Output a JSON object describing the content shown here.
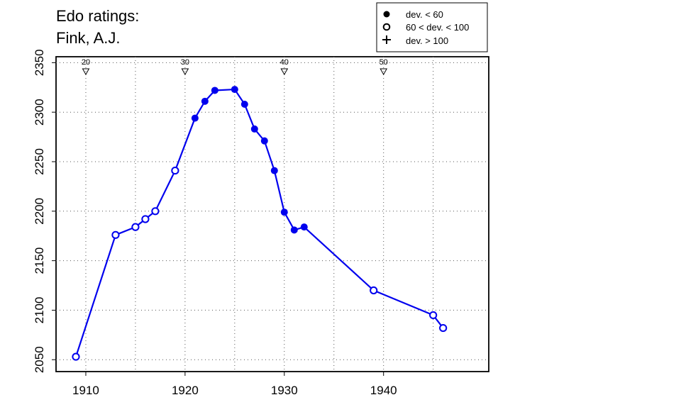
{
  "chart_data": {
    "type": "line",
    "title": "Edo ratings:",
    "subtitle": "Fink, A.J.",
    "xlim": [
      1907,
      1950.6
    ],
    "ylim": [
      2038,
      2356
    ],
    "grid": true,
    "line_color": "#0000ee",
    "x_ticks": [
      1910,
      1920,
      1930,
      1940
    ],
    "x_tick_labels": [
      "1910",
      "1920",
      "1930",
      "1940"
    ],
    "x_grid_extra": [
      1915,
      1925,
      1935,
      1945
    ],
    "y_ticks": [
      2050,
      2100,
      2150,
      2200,
      2250,
      2300,
      2350
    ],
    "y_tick_labels": [
      "2050",
      "2100",
      "2150",
      "2200",
      "2250",
      "2300",
      "2350"
    ],
    "age_markers": [
      {
        "x": 1910,
        "label": "20"
      },
      {
        "x": 1920,
        "label": "30"
      },
      {
        "x": 1930,
        "label": "40"
      },
      {
        "x": 1940,
        "label": "50"
      }
    ],
    "legend": {
      "placement": "top-right",
      "entries": [
        {
          "symbol": "filled-circle",
          "label": "dev. < 60"
        },
        {
          "symbol": "open-circle",
          "label": "60 < dev. < 100"
        },
        {
          "symbol": "plus",
          "label": "dev. > 100"
        }
      ]
    },
    "points": [
      {
        "x": 1909,
        "y": 2053,
        "dev": "open"
      },
      {
        "x": 1913,
        "y": 2176,
        "dev": "open"
      },
      {
        "x": 1915,
        "y": 2184,
        "dev": "open"
      },
      {
        "x": 1916,
        "y": 2192,
        "dev": "open"
      },
      {
        "x": 1917,
        "y": 2200,
        "dev": "open"
      },
      {
        "x": 1919,
        "y": 2241,
        "dev": "open"
      },
      {
        "x": 1921,
        "y": 2294,
        "dev": "filled"
      },
      {
        "x": 1922,
        "y": 2311,
        "dev": "filled"
      },
      {
        "x": 1923,
        "y": 2322,
        "dev": "filled"
      },
      {
        "x": 1925,
        "y": 2323,
        "dev": "filled"
      },
      {
        "x": 1926,
        "y": 2308,
        "dev": "filled"
      },
      {
        "x": 1927,
        "y": 2283,
        "dev": "filled"
      },
      {
        "x": 1928,
        "y": 2271,
        "dev": "filled"
      },
      {
        "x": 1929,
        "y": 2241,
        "dev": "filled"
      },
      {
        "x": 1930,
        "y": 2199,
        "dev": "filled"
      },
      {
        "x": 1931,
        "y": 2181,
        "dev": "filled"
      },
      {
        "x": 1932,
        "y": 2184,
        "dev": "filled"
      },
      {
        "x": 1939,
        "y": 2120,
        "dev": "open"
      },
      {
        "x": 1945,
        "y": 2095,
        "dev": "open"
      },
      {
        "x": 1946,
        "y": 2082,
        "dev": "open"
      }
    ]
  }
}
